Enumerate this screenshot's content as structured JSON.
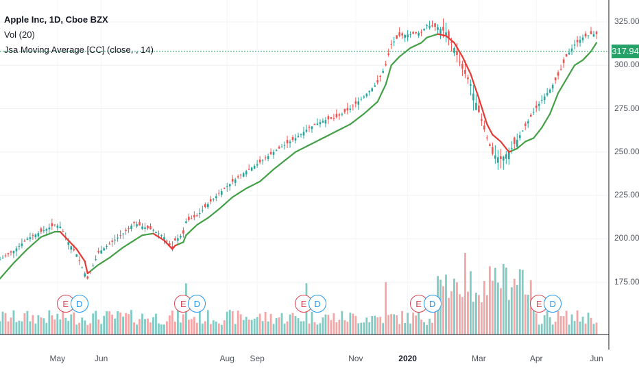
{
  "legend": {
    "title": "Apple Inc, 1D, Cboe BZX",
    "vol": "Vol (20)",
    "indicator": "Jsa Moving Average [CC] (close, , 14)"
  },
  "price_label": "317.94",
  "colors": {
    "up": "#26a69a",
    "down": "#ef5350",
    "ma_up": "#43a047",
    "ma_down": "#e53935",
    "vol_up": "#80cbc4",
    "vol_down": "#f4a6a6",
    "last_price": "#26a269"
  },
  "chart_data": {
    "type": "candlestick",
    "y_ticks": [
      "325.00",
      "300.00",
      "275.00",
      "250.00",
      "225.00",
      "200.00",
      "175.00"
    ],
    "y_tick_values": [
      325,
      300,
      275,
      250,
      225,
      200,
      175
    ],
    "ylim": [
      150,
      335
    ],
    "x_ticks": [
      "May",
      "Jun",
      "Aug",
      "Sep",
      "Nov",
      "2020",
      "Mar",
      "Apr",
      "Jun"
    ],
    "x_tick_bold": [
      false,
      false,
      false,
      false,
      false,
      true,
      false,
      false,
      false
    ],
    "last_price": 317.94,
    "close_series": [
      [
        0,
        188
      ],
      [
        5,
        193
      ],
      [
        10,
        200
      ],
      [
        15,
        204
      ],
      [
        20,
        208
      ],
      [
        22,
        207
      ],
      [
        25,
        198
      ],
      [
        28,
        191
      ],
      [
        31,
        180
      ],
      [
        32,
        177
      ],
      [
        36,
        192
      ],
      [
        40,
        197
      ],
      [
        45,
        203
      ],
      [
        49,
        209
      ],
      [
        52,
        207
      ],
      [
        56,
        205
      ],
      [
        60,
        201
      ],
      [
        63,
        194
      ],
      [
        64,
        199
      ],
      [
        67,
        203
      ],
      [
        68,
        210
      ],
      [
        72,
        213
      ],
      [
        76,
        220
      ],
      [
        80,
        226
      ],
      [
        85,
        233
      ],
      [
        90,
        239
      ],
      [
        95,
        244
      ],
      [
        100,
        250
      ],
      [
        104,
        254
      ],
      [
        108,
        258
      ],
      [
        113,
        264
      ],
      [
        118,
        268
      ],
      [
        123,
        270
      ],
      [
        128,
        275
      ],
      [
        133,
        282
      ],
      [
        138,
        290
      ],
      [
        141,
        300
      ],
      [
        143,
        312
      ],
      [
        146,
        317
      ],
      [
        150,
        318
      ],
      [
        154,
        319
      ],
      [
        156,
        323
      ],
      [
        160,
        322
      ],
      [
        163,
        319
      ],
      [
        166,
        310
      ],
      [
        169,
        298
      ],
      [
        172,
        289
      ],
      [
        175,
        273
      ],
      [
        178,
        258
      ],
      [
        180,
        249
      ],
      [
        183,
        246
      ],
      [
        186,
        250
      ],
      [
        189,
        257
      ],
      [
        192,
        265
      ],
      [
        195,
        273
      ],
      [
        198,
        280
      ],
      [
        201,
        286
      ],
      [
        204,
        294
      ],
      [
        207,
        305
      ],
      [
        210,
        312
      ],
      [
        213,
        316
      ],
      [
        216,
        318
      ],
      [
        218,
        318
      ]
    ],
    "ma_series": [
      [
        0,
        177
      ],
      [
        5,
        186
      ],
      [
        10,
        194
      ],
      [
        15,
        201
      ],
      [
        20,
        204
      ],
      [
        22,
        204
      ],
      [
        25,
        199
      ],
      [
        28,
        194
      ],
      [
        31,
        187
      ],
      [
        32,
        180
      ],
      [
        36,
        185
      ],
      [
        40,
        189
      ],
      [
        45,
        195
      ],
      [
        49,
        199
      ],
      [
        52,
        202
      ],
      [
        56,
        203
      ],
      [
        60,
        199
      ],
      [
        63,
        194
      ],
      [
        64,
        196
      ],
      [
        67,
        198
      ],
      [
        68,
        202
      ],
      [
        72,
        208
      ],
      [
        76,
        212
      ],
      [
        80,
        217
      ],
      [
        85,
        224
      ],
      [
        90,
        229
      ],
      [
        95,
        233
      ],
      [
        100,
        240
      ],
      [
        104,
        245
      ],
      [
        108,
        250
      ],
      [
        113,
        254
      ],
      [
        118,
        258
      ],
      [
        123,
        262
      ],
      [
        128,
        266
      ],
      [
        133,
        272
      ],
      [
        138,
        279
      ],
      [
        141,
        289
      ],
      [
        143,
        300
      ],
      [
        146,
        305
      ],
      [
        150,
        310
      ],
      [
        154,
        313
      ],
      [
        156,
        316
      ],
      [
        160,
        318
      ],
      [
        163,
        317
      ],
      [
        166,
        313
      ],
      [
        169,
        305
      ],
      [
        172,
        295
      ],
      [
        175,
        281
      ],
      [
        178,
        266
      ],
      [
        180,
        260
      ],
      [
        183,
        256
      ],
      [
        186,
        250
      ],
      [
        189,
        252
      ],
      [
        192,
        256
      ],
      [
        195,
        258
      ],
      [
        198,
        264
      ],
      [
        201,
        272
      ],
      [
        204,
        284
      ],
      [
        207,
        292
      ],
      [
        210,
        300
      ],
      [
        213,
        303
      ],
      [
        216,
        308
      ],
      [
        218,
        313
      ]
    ],
    "ma_down_ranges": [
      [
        22,
        32
      ],
      [
        56,
        64
      ],
      [
        160,
        186
      ]
    ],
    "earnings_badges": [
      {
        "label": "E",
        "kind": "e",
        "day": 24
      },
      {
        "label": "D",
        "kind": "d",
        "day": 29
      },
      {
        "label": "E",
        "kind": "e",
        "day": 67
      },
      {
        "label": "D",
        "kind": "d",
        "day": 72
      },
      {
        "label": "E",
        "kind": "e",
        "day": 111
      },
      {
        "label": "D",
        "kind": "d",
        "day": 116
      },
      {
        "label": "E",
        "kind": "e",
        "day": 153
      },
      {
        "label": "D",
        "kind": "d",
        "day": 158
      },
      {
        "label": "E",
        "kind": "e",
        "day": 197
      },
      {
        "label": "D",
        "kind": "d",
        "day": 202
      }
    ]
  }
}
